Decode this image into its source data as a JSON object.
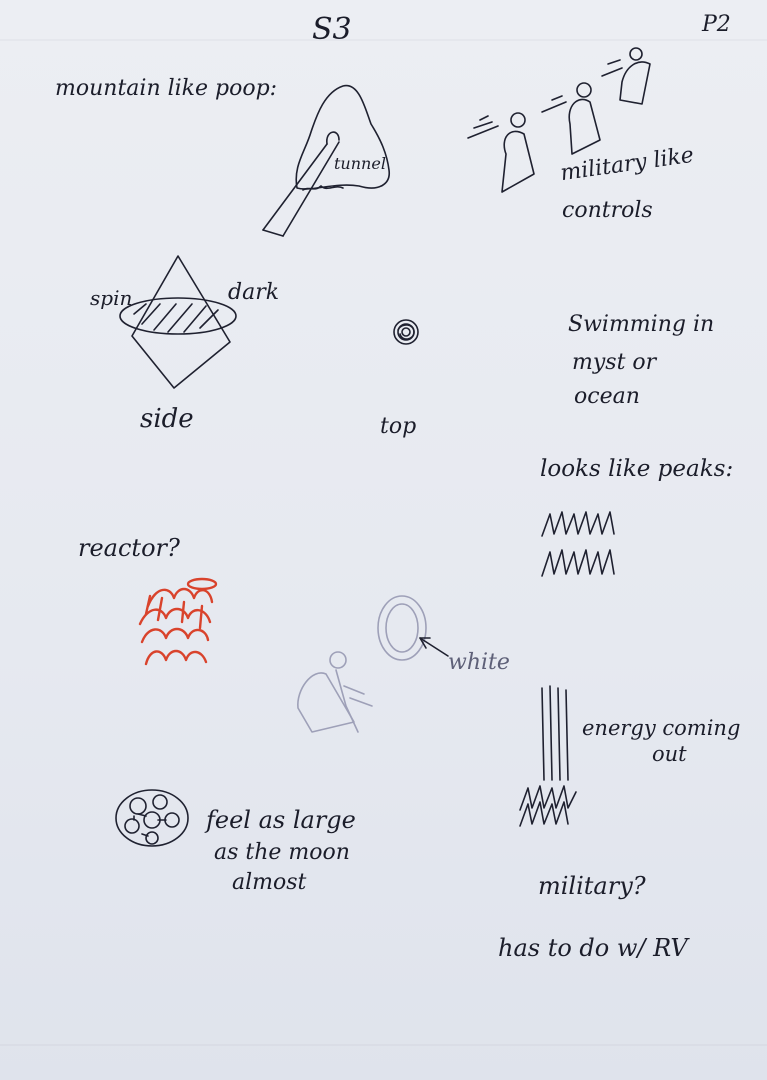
{
  "header": {
    "title": "S3",
    "page_number": "P2"
  },
  "notes": {
    "mountain": "mountain like poop:",
    "tunnel": "tunnel",
    "military_controls_1": "military like",
    "military_controls_2": "controls",
    "spin": "spin",
    "dark": "dark",
    "side": "side",
    "top": "top",
    "swimming_1": "Swimming in",
    "swimming_2": "myst or",
    "swimming_3": "ocean",
    "peaks": "looks like peaks:",
    "reactor": "reactor?",
    "white": "white",
    "energy_1": "energy coming",
    "energy_2": "out",
    "large_1": "feel as large",
    "large_2": "as the moon",
    "large_3": "almost",
    "military_q": "military?",
    "rv": "has to do w/ RV"
  },
  "colors": {
    "ink": "#1f2130",
    "pencil": "#9ea0b8",
    "red_ink": "#d9432c",
    "paper": "#e9ebf1"
  }
}
